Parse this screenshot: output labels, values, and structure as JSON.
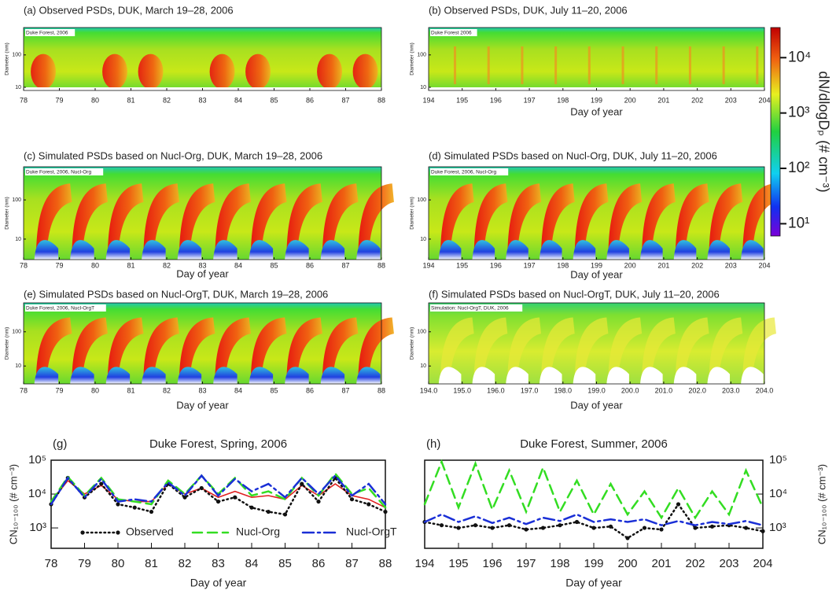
{
  "colorbar": {
    "label": "dN/dlogDₚ (# cm⁻³)",
    "lim": [
      6,
      35000
    ],
    "log": true,
    "ticks": [
      {
        "value": 10,
        "label": "10¹"
      },
      {
        "value": 100,
        "label": "10²"
      },
      {
        "value": 1000,
        "label": "10³"
      },
      {
        "value": 10000,
        "label": "10⁴"
      }
    ]
  },
  "chart_data": [
    {
      "type": "heatmap",
      "variant": "observed-spring",
      "title": "(a) Observed PSDs, DUK, March 19–28, 2006",
      "annotation": "Duke Forest, 2006",
      "ylabel": "Diameter (nm)",
      "xlim": [
        78,
        88
      ],
      "xticks": [
        78,
        79,
        80,
        81,
        82,
        83,
        84,
        85,
        86,
        87,
        88
      ],
      "ylim": [
        8,
        700
      ],
      "yticks": [
        10,
        100
      ],
      "log_y": true
    },
    {
      "type": "heatmap",
      "variant": "observed-summer",
      "title": "(b) Observed PSDs, DUK, July 11–20, 2006",
      "annotation": "Duke Forest 2006",
      "xlabel": "Day of year",
      "ylabel": "Diameter (nm)",
      "xlim": [
        194,
        204
      ],
      "xticks": [
        194,
        195,
        196,
        197,
        198,
        199,
        200,
        201,
        202,
        203,
        204
      ],
      "ylim": [
        8,
        700
      ],
      "yticks": [
        10,
        100
      ],
      "log_y": true
    },
    {
      "type": "heatmap",
      "variant": "simulated",
      "title": "(c) Simulated PSDs based on Nucl-Org, DUK, March 19–28, 2006",
      "annotation": "Duke Forest, 2006, Nucl-Org",
      "xlabel": "Day of year",
      "ylabel": "Diameter (nm)",
      "xlim": [
        78,
        88
      ],
      "xticks": [
        78,
        79,
        80,
        81,
        82,
        83,
        84,
        85,
        86,
        87,
        88
      ],
      "ylim": [
        3,
        700
      ],
      "yticks": [
        10,
        100
      ],
      "log_y": true
    },
    {
      "type": "heatmap",
      "variant": "simulated",
      "title": "(d) Simulated PSDs based on Nucl-Org, DUK, July 11–20, 2006",
      "annotation": "Duke Forest, 2006, Nucl-Org",
      "xlabel": "Day of year",
      "ylabel": "Diameter (nm)",
      "xlim": [
        194,
        204
      ],
      "xticks": [
        194,
        195,
        196,
        197,
        198,
        199,
        200,
        201,
        202,
        203,
        204
      ],
      "ylim": [
        3,
        700
      ],
      "yticks": [
        10,
        100
      ],
      "log_y": true
    },
    {
      "type": "heatmap",
      "variant": "simulated",
      "title": "(e) Simulated PSDs based on Nucl-OrgT, DUK, March 19–28, 2006",
      "annotation": "Duke Forest, 2006, Nucl-OrgT",
      "xlabel": "Day of year",
      "ylabel": "Diameter (nm)",
      "xlim": [
        78,
        88
      ],
      "xticks": [
        78,
        79,
        80,
        81,
        82,
        83,
        84,
        85,
        86,
        87,
        88
      ],
      "ylim": [
        3,
        700
      ],
      "yticks": [
        10,
        100
      ],
      "log_y": true
    },
    {
      "type": "heatmap",
      "variant": "simulated-light",
      "title": "(f) Simulated PSDs based on Nucl-OrgT, DUK, July 11–20, 2006",
      "annotation": "Simulation: Nucl-OrgT, DUK, 2006",
      "xlabel": "Day of year",
      "ylabel": "Diameter (nm)",
      "xlim": [
        194,
        204
      ],
      "xticks": [
        {
          "value": 194,
          "label": "194.0"
        },
        {
          "value": 195,
          "label": "195.0"
        },
        {
          "value": 196,
          "label": "196.0"
        },
        {
          "value": 197,
          "label": "197.0"
        },
        {
          "value": 198,
          "label": "198.0"
        },
        {
          "value": 199,
          "label": "199.0"
        },
        {
          "value": 200,
          "label": "200.0"
        },
        {
          "value": 201,
          "label": "201.0"
        },
        {
          "value": 202,
          "label": "202.0"
        },
        {
          "value": 203,
          "label": "203.0"
        },
        {
          "value": 204,
          "label": "204.0"
        }
      ],
      "ylim": [
        3,
        700
      ],
      "yticks": [
        10,
        100
      ],
      "log_y": true
    },
    {
      "type": "line",
      "panel_label": "(g)",
      "title": "Duke Forest, Spring, 2006",
      "xlabel": "Day of year",
      "ylabel": "CN₁₀₋₁₀₀ (# cm⁻³)",
      "yaxis_side": "left",
      "legend": "bottom",
      "x": [
        78,
        78.5,
        79,
        79.5,
        80,
        80.5,
        81,
        81.5,
        82,
        82.5,
        83,
        83.5,
        84,
        84.5,
        85,
        85.5,
        86,
        86.5,
        87,
        87.5,
        88
      ],
      "xlim": [
        78,
        88
      ],
      "xticks": [
        78,
        79,
        80,
        81,
        82,
        83,
        84,
        85,
        86,
        87,
        88
      ],
      "ylim": [
        250,
        100000
      ],
      "yticks": [
        {
          "value": 1000,
          "label": "10³"
        },
        {
          "value": 10000,
          "label": "10⁴"
        },
        {
          "value": 100000,
          "label": "10⁵"
        }
      ],
      "log_y": true,
      "series": [
        {
          "color": "#e02020",
          "style": "solid",
          "values": [
            6000,
            25000,
            10000,
            18000,
            7000,
            6000,
            6000,
            20000,
            10000,
            15000,
            8000,
            12000,
            8000,
            9000,
            7000,
            18000,
            9000,
            20000,
            9000,
            7000,
            4000
          ]
        },
        {
          "name": "Observed",
          "color": "#111111",
          "style": "dotted",
          "marker": "circle",
          "values": [
            5000,
            30000,
            8000,
            20000,
            5000,
            4000,
            3000,
            20000,
            8000,
            15000,
            6000,
            8000,
            4000,
            3000,
            2500,
            20000,
            6000,
            30000,
            7000,
            5000,
            3000
          ]
        },
        {
          "name": "Nucl-Org",
          "color": "#33dd22",
          "style": "dashed",
          "values": [
            6000,
            32000,
            9000,
            30000,
            7000,
            6000,
            5000,
            25000,
            10000,
            35000,
            10000,
            30000,
            9000,
            12000,
            7000,
            30000,
            9000,
            40000,
            10000,
            15000,
            4000
          ]
        },
        {
          "name": "Nucl-OrgT",
          "color": "#1a2fd6",
          "style": "dashdot",
          "values": [
            5000,
            30000,
            8000,
            28000,
            6000,
            7000,
            6000,
            22000,
            9000,
            35000,
            9000,
            28000,
            12000,
            20000,
            8000,
            30000,
            10000,
            35000,
            9000,
            20000,
            5000
          ]
        }
      ]
    },
    {
      "type": "line",
      "panel_label": "(h)",
      "title": "Duke Forest, Summer, 2006",
      "xlabel": "Day of year",
      "ylabel": "CN₁₀₋₁₀₀ (# cm⁻³)",
      "yaxis_side": "right",
      "x": [
        194,
        194.5,
        195,
        195.5,
        196,
        196.5,
        197,
        197.5,
        198,
        198.5,
        199,
        199.5,
        200,
        200.5,
        201,
        201.5,
        202,
        202.5,
        203,
        203.5,
        204
      ],
      "xlim": [
        194,
        204
      ],
      "xticks": [
        194,
        195,
        196,
        197,
        198,
        199,
        200,
        201,
        202,
        203,
        204
      ],
      "ylim": [
        250,
        100000
      ],
      "yticks": [
        {
          "value": 1000,
          "label": "10³"
        },
        {
          "value": 10000,
          "label": "10⁴"
        },
        {
          "value": 100000,
          "label": "10⁵"
        }
      ],
      "log_y": true,
      "series": [
        {
          "name": "Observed",
          "color": "#111111",
          "style": "dotted",
          "marker": "circle",
          "values": [
            1500,
            1200,
            1000,
            1200,
            1000,
            1200,
            900,
            1000,
            1200,
            1500,
            1000,
            1100,
            500,
            1000,
            900,
            5000,
            1000,
            1100,
            1200,
            1000,
            800
          ]
        },
        {
          "name": "Nucl-Org",
          "color": "#33dd22",
          "style": "dashed",
          "values": [
            5000,
            90000,
            4000,
            80000,
            3500,
            50000,
            3000,
            60000,
            3000,
            25000,
            2500,
            20000,
            2500,
            12000,
            2000,
            15000,
            2000,
            12000,
            2500,
            50000,
            4000
          ]
        },
        {
          "name": "Nucl-OrgT",
          "color": "#1a2fd6",
          "style": "dashdot",
          "values": [
            1500,
            2500,
            1500,
            2200,
            1400,
            2000,
            1300,
            2000,
            1600,
            2500,
            1500,
            1800,
            1500,
            1800,
            1200,
            1600,
            1200,
            1500,
            1300,
            1600,
            1200
          ]
        }
      ]
    }
  ]
}
